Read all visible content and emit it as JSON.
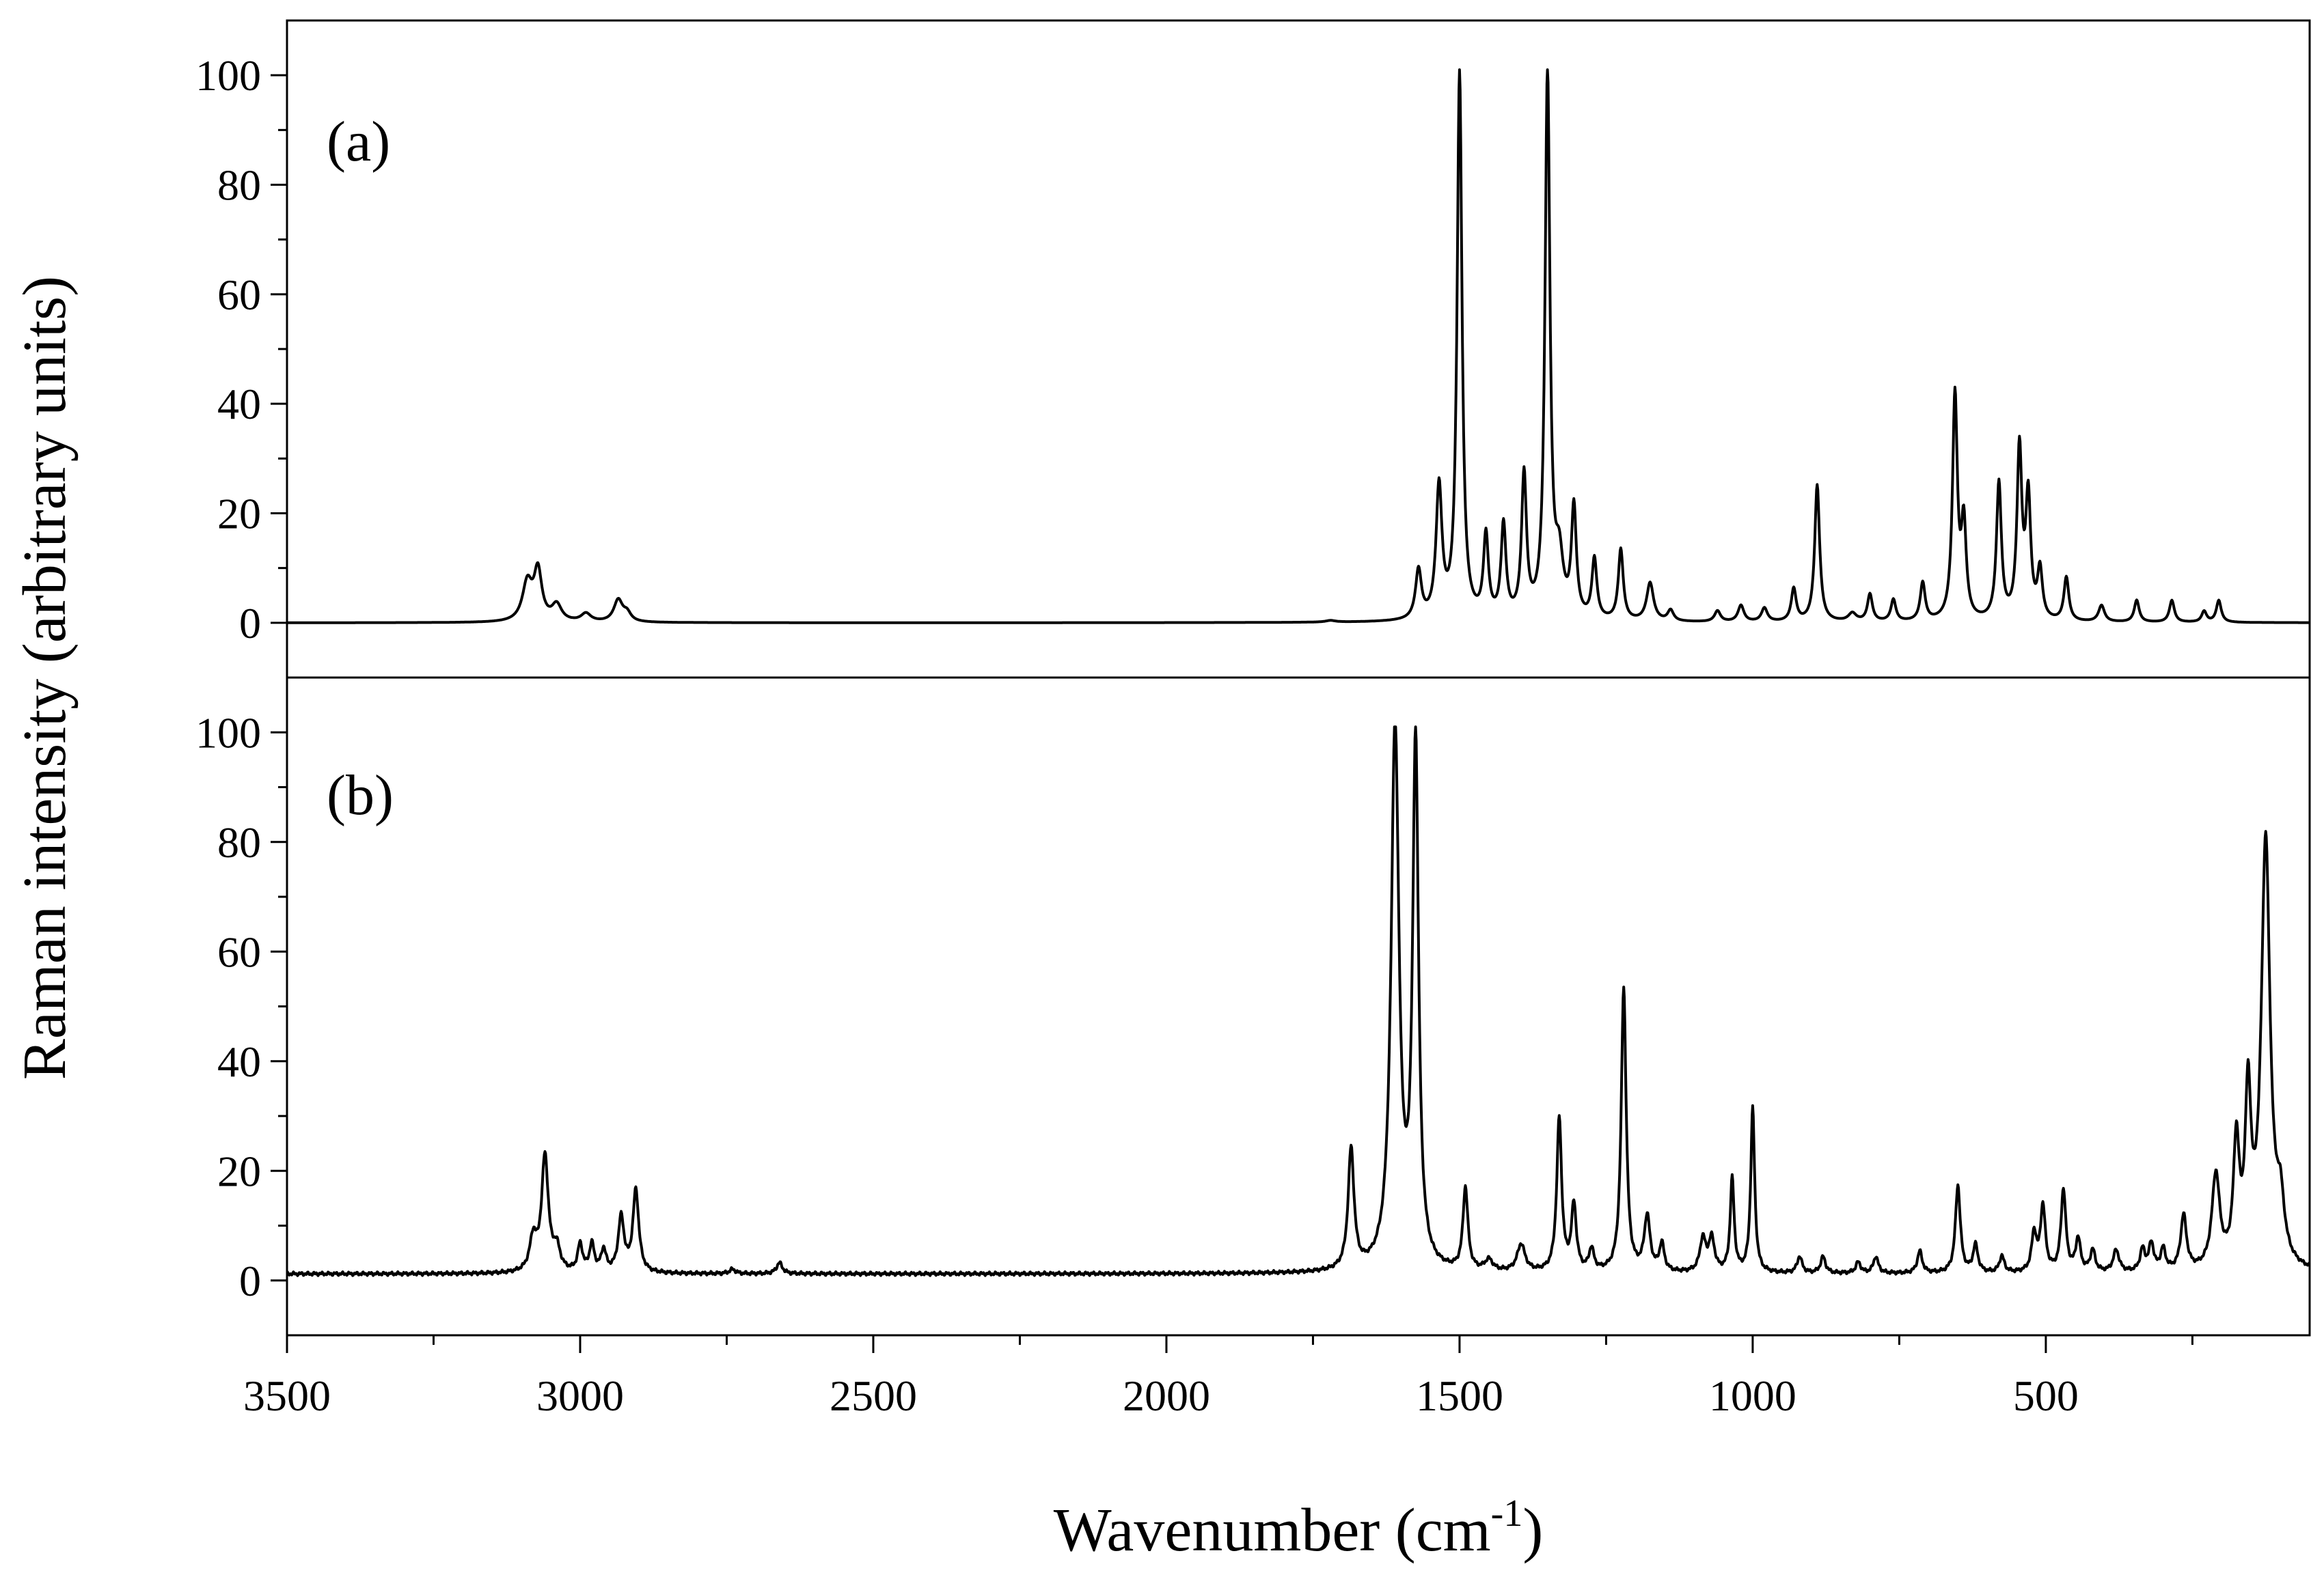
{
  "chart_data": {
    "type": "line",
    "xlabel": "Wavenumber (cm",
    "xlabel_sup": "-1",
    "xlabel_close": ")",
    "ylabel": "Raman intensity (arbitrary units)",
    "xlim": [
      3500,
      50
    ],
    "x_reversed": true,
    "x_ticks": [
      3500,
      3000,
      2500,
      2000,
      1500,
      1000,
      500
    ],
    "x_tick_labels": [
      "3500",
      "3000",
      "2500",
      "2000",
      "1500",
      "1000",
      "500"
    ],
    "grid": false,
    "panels": [
      {
        "label": "(a)",
        "ylim": [
          -10,
          110
        ],
        "y_ticks": [
          0,
          20,
          40,
          60,
          80,
          100
        ],
        "y_tick_labels": [
          "0",
          "20",
          "40",
          "60",
          "80",
          "100"
        ],
        "baseline": 0,
        "peaks": [
          [
            3090,
            7,
            10
          ],
          [
            3072,
            9,
            8
          ],
          [
            3040,
            3,
            10
          ],
          [
            2990,
            1.5,
            10
          ],
          [
            2935,
            4,
            9
          ],
          [
            2920,
            1.5,
            8
          ],
          [
            1720,
            0.3,
            10
          ],
          [
            1570,
            9,
            6
          ],
          [
            1535,
            24,
            6
          ],
          [
            1500,
            100,
            5
          ],
          [
            1455,
            15,
            5
          ],
          [
            1425,
            17,
            5
          ],
          [
            1390,
            26,
            5
          ],
          [
            1350,
            100,
            5
          ],
          [
            1330,
            10,
            8
          ],
          [
            1305,
            20,
            5
          ],
          [
            1270,
            11,
            5
          ],
          [
            1225,
            13,
            5
          ],
          [
            1175,
            7,
            7
          ],
          [
            1140,
            2,
            6
          ],
          [
            1060,
            2,
            6
          ],
          [
            1020,
            3,
            6
          ],
          [
            980,
            2.5,
            6
          ],
          [
            930,
            6,
            5
          ],
          [
            890,
            25,
            5
          ],
          [
            830,
            1.5,
            8
          ],
          [
            800,
            5,
            5
          ],
          [
            760,
            4,
            5
          ],
          [
            710,
            7,
            5
          ],
          [
            655,
            41,
            5
          ],
          [
            640,
            17,
            5
          ],
          [
            580,
            25,
            5
          ],
          [
            545,
            31,
            5
          ],
          [
            530,
            22,
            5
          ],
          [
            510,
            9,
            5
          ],
          [
            465,
            8,
            5
          ],
          [
            405,
            3,
            6
          ],
          [
            345,
            4,
            5
          ],
          [
            285,
            4,
            5
          ],
          [
            230,
            2,
            5
          ],
          [
            205,
            4,
            5
          ]
        ]
      },
      {
        "label": "(b)",
        "ylim": [
          -10,
          110
        ],
        "y_ticks": [
          0,
          20,
          40,
          60,
          80,
          100
        ],
        "y_tick_labels": [
          "0",
          "20",
          "40",
          "60",
          "80",
          "100"
        ],
        "baseline": 1.2,
        "peaks": [
          [
            3080,
            6,
            7
          ],
          [
            3060,
            21,
            7
          ],
          [
            3040,
            4,
            7
          ],
          [
            3000,
            5,
            5
          ],
          [
            2980,
            5,
            5
          ],
          [
            2960,
            4,
            5
          ],
          [
            2930,
            10,
            6
          ],
          [
            2905,
            15,
            6
          ],
          [
            2660,
            2,
            6
          ],
          [
            2740,
            0.8,
            6
          ],
          [
            1685,
            22,
            6
          ],
          [
            1610,
            99,
            8
          ],
          [
            1575,
            95,
            6
          ],
          [
            1490,
            15,
            5
          ],
          [
            1450,
            2,
            8
          ],
          [
            1395,
            5,
            8
          ],
          [
            1330,
            28,
            5
          ],
          [
            1305,
            12,
            5
          ],
          [
            1275,
            4,
            5
          ],
          [
            1220,
            52,
            5
          ],
          [
            1180,
            10,
            6
          ],
          [
            1155,
            5,
            5
          ],
          [
            1085,
            6,
            6
          ],
          [
            1070,
            6,
            6
          ],
          [
            1035,
            17,
            4
          ],
          [
            1000,
            30,
            4
          ],
          [
            920,
            3,
            5
          ],
          [
            880,
            3,
            5
          ],
          [
            820,
            2,
            5
          ],
          [
            790,
            3,
            5
          ],
          [
            715,
            4,
            5
          ],
          [
            650,
            16,
            5
          ],
          [
            620,
            5,
            5
          ],
          [
            575,
            3,
            5
          ],
          [
            520,
            7,
            5
          ],
          [
            505,
            12,
            5
          ],
          [
            470,
            15,
            5
          ],
          [
            445,
            6,
            5
          ],
          [
            420,
            4,
            5
          ],
          [
            380,
            4,
            6
          ],
          [
            335,
            4,
            5
          ],
          [
            320,
            5,
            5
          ],
          [
            300,
            4,
            5
          ],
          [
            265,
            10,
            6
          ],
          [
            210,
            17,
            8
          ],
          [
            175,
            22,
            6
          ],
          [
            155,
            30,
            6
          ],
          [
            125,
            78,
            9
          ],
          [
            100,
            10,
            8
          ]
        ]
      }
    ]
  }
}
